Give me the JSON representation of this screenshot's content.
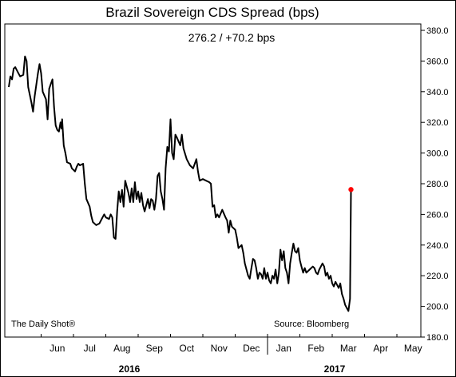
{
  "chart_data": {
    "type": "line",
    "title": "Brazil Sovereign CDS Spread (bps)",
    "subtitle": "276.2  /  +70.2 bps",
    "source": "Source: Bloomberg",
    "watermark": "The Daily Shot®",
    "ylim": [
      180,
      380
    ],
    "yticks": [
      "380.0",
      "360.0",
      "340.0",
      "320.0",
      "300.0",
      "280.0",
      "260.0",
      "240.0",
      "220.0",
      "200.0",
      "180.0"
    ],
    "grid": false,
    "line_color": "#000000",
    "marker_color": "#ff0000",
    "months": [
      "Jun",
      "Jul",
      "Aug",
      "Sep",
      "Oct",
      "Nov",
      "Dec",
      "Jan",
      "Feb",
      "Mar",
      "Apr",
      "May"
    ],
    "years": [
      "2016",
      "2017"
    ],
    "x_units": "months since 2016-05-01",
    "values": [
      [
        0.0,
        343
      ],
      [
        0.05,
        350
      ],
      [
        0.1,
        348
      ],
      [
        0.15,
        355
      ],
      [
        0.2,
        356
      ],
      [
        0.3,
        352
      ],
      [
        0.35,
        350
      ],
      [
        0.45,
        351
      ],
      [
        0.5,
        363
      ],
      [
        0.55,
        360
      ],
      [
        0.6,
        343
      ],
      [
        0.7,
        333
      ],
      [
        0.75,
        327
      ],
      [
        0.8,
        337
      ],
      [
        0.9,
        352
      ],
      [
        0.95,
        358
      ],
      [
        1.0,
        352
      ],
      [
        1.05,
        340
      ],
      [
        1.15,
        335
      ],
      [
        1.2,
        322
      ],
      [
        1.25,
        342
      ],
      [
        1.3,
        345
      ],
      [
        1.35,
        348
      ],
      [
        1.4,
        330
      ],
      [
        1.45,
        318
      ],
      [
        1.5,
        315
      ],
      [
        1.55,
        314
      ],
      [
        1.6,
        320
      ],
      [
        1.63,
        316
      ],
      [
        1.65,
        322
      ],
      [
        1.7,
        305
      ],
      [
        1.75,
        300
      ],
      [
        1.8,
        294
      ],
      [
        1.9,
        293
      ],
      [
        1.95,
        290
      ],
      [
        2.0,
        289
      ],
      [
        2.05,
        288
      ],
      [
        2.1,
        291
      ],
      [
        2.15,
        293
      ],
      [
        2.2,
        292
      ],
      [
        2.3,
        293
      ],
      [
        2.35,
        280
      ],
      [
        2.4,
        270
      ],
      [
        2.5,
        265
      ],
      [
        2.55,
        259
      ],
      [
        2.6,
        255
      ],
      [
        2.7,
        253
      ],
      [
        2.8,
        254
      ],
      [
        2.9,
        258
      ],
      [
        2.95,
        260
      ],
      [
        3.0,
        258
      ],
      [
        3.1,
        257
      ],
      [
        3.15,
        260
      ],
      [
        3.2,
        258
      ],
      [
        3.25,
        245
      ],
      [
        3.3,
        244
      ],
      [
        3.35,
        262
      ],
      [
        3.4,
        275
      ],
      [
        3.45,
        268
      ],
      [
        3.5,
        276
      ],
      [
        3.55,
        265
      ],
      [
        3.6,
        282
      ],
      [
        3.7,
        274
      ],
      [
        3.75,
        268
      ],
      [
        3.8,
        277
      ],
      [
        3.85,
        268
      ],
      [
        3.9,
        281
      ],
      [
        3.95,
        270
      ],
      [
        4.0,
        275
      ],
      [
        4.05,
        268
      ],
      [
        4.1,
        274
      ],
      [
        4.15,
        266
      ],
      [
        4.2,
        262
      ],
      [
        4.3,
        270
      ],
      [
        4.35,
        264
      ],
      [
        4.4,
        270
      ],
      [
        4.45,
        269
      ],
      [
        4.5,
        263
      ],
      [
        4.55,
        270
      ],
      [
        4.6,
        285
      ],
      [
        4.65,
        287
      ],
      [
        4.7,
        275
      ],
      [
        4.75,
        270
      ],
      [
        4.8,
        263
      ],
      [
        4.85,
        290
      ],
      [
        4.9,
        304
      ],
      [
        4.95,
        301
      ],
      [
        5.0,
        322
      ],
      [
        5.05,
        300
      ],
      [
        5.1,
        296
      ],
      [
        5.15,
        312
      ],
      [
        5.2,
        310
      ],
      [
        5.3,
        305
      ],
      [
        5.35,
        312
      ],
      [
        5.4,
        303
      ],
      [
        5.5,
        296
      ],
      [
        5.6,
        292
      ],
      [
        5.7,
        290
      ],
      [
        5.8,
        296
      ],
      [
        5.85,
        288
      ],
      [
        5.9,
        282
      ],
      [
        6.0,
        283
      ],
      [
        6.1,
        282
      ],
      [
        6.2,
        281
      ],
      [
        6.25,
        280
      ],
      [
        6.3,
        265
      ],
      [
        6.35,
        266
      ],
      [
        6.4,
        258
      ],
      [
        6.45,
        260
      ],
      [
        6.5,
        258
      ],
      [
        6.6,
        263
      ],
      [
        6.7,
        258
      ],
      [
        6.75,
        256
      ],
      [
        6.8,
        248
      ],
      [
        6.85,
        256
      ],
      [
        6.9,
        252
      ],
      [
        7.0,
        250
      ],
      [
        7.05,
        245
      ],
      [
        7.1,
        238
      ],
      [
        7.2,
        240
      ],
      [
        7.25,
        235
      ],
      [
        7.3,
        228
      ],
      [
        7.4,
        220
      ],
      [
        7.45,
        218
      ],
      [
        7.5,
        225
      ],
      [
        7.55,
        231
      ],
      [
        7.6,
        230
      ],
      [
        7.65,
        225
      ],
      [
        7.7,
        218
      ],
      [
        7.75,
        222
      ],
      [
        7.8,
        221
      ],
      [
        7.85,
        218
      ],
      [
        7.9,
        225
      ],
      [
        7.95,
        218
      ],
      [
        8.0,
        222
      ],
      [
        8.05,
        217
      ],
      [
        8.1,
        215
      ],
      [
        8.15,
        220
      ],
      [
        8.2,
        218
      ],
      [
        8.25,
        224
      ],
      [
        8.3,
        215
      ],
      [
        8.35,
        222
      ],
      [
        8.4,
        237
      ],
      [
        8.45,
        230
      ],
      [
        8.5,
        236
      ],
      [
        8.55,
        225
      ],
      [
        8.6,
        222
      ],
      [
        8.65,
        215
      ],
      [
        8.7,
        228
      ],
      [
        8.75,
        235
      ],
      [
        8.8,
        241
      ],
      [
        8.85,
        236
      ],
      [
        8.9,
        235
      ],
      [
        8.95,
        238
      ],
      [
        9.0,
        230
      ],
      [
        9.05,
        226
      ],
      [
        9.1,
        222
      ],
      [
        9.15,
        225
      ],
      [
        9.2,
        222
      ],
      [
        9.3,
        224
      ],
      [
        9.4,
        226
      ],
      [
        9.45,
        225
      ],
      [
        9.5,
        222
      ],
      [
        9.55,
        221
      ],
      [
        9.6,
        224
      ],
      [
        9.65,
        226
      ],
      [
        9.7,
        228
      ],
      [
        9.75,
        226
      ],
      [
        9.8,
        220
      ],
      [
        9.85,
        222
      ],
      [
        9.9,
        218
      ],
      [
        9.95,
        220
      ],
      [
        10.0,
        215
      ],
      [
        10.05,
        213
      ],
      [
        10.1,
        216
      ],
      [
        10.15,
        214
      ],
      [
        10.2,
        212
      ],
      [
        10.25,
        215
      ],
      [
        10.3,
        208
      ],
      [
        10.35,
        205
      ],
      [
        10.4,
        201
      ],
      [
        10.45,
        199
      ],
      [
        10.5,
        197
      ],
      [
        10.55,
        205
      ],
      [
        10.58,
        276
      ]
    ],
    "last_point": [
      10.58,
      276.2
    ]
  }
}
